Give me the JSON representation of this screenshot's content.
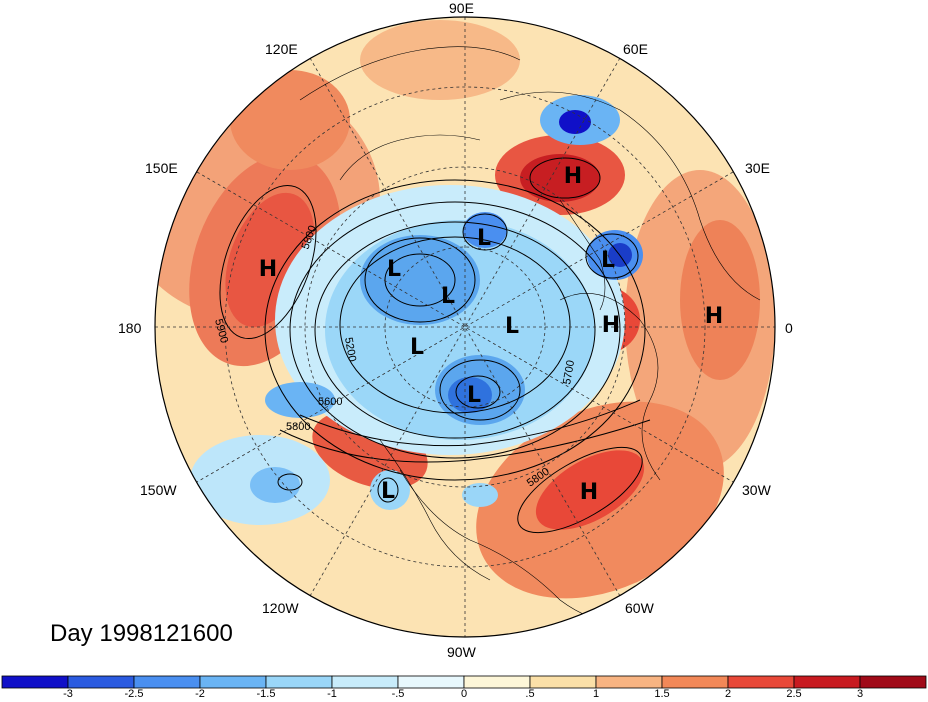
{
  "title": "Day 1998121600",
  "longitude_labels": {
    "lon_90e": "90E",
    "lon_60e": "60E",
    "lon_120e": "120E",
    "lon_150e": "150E",
    "lon_30e": "30E",
    "lon_180": "180",
    "lon_0": "0",
    "lon_150w": "150W",
    "lon_30w": "30W",
    "lon_120w": "120W",
    "lon_60w": "60W",
    "lon_90w": "90W"
  },
  "contour_labels": [
    "5800",
    "5900",
    "5200",
    "5600",
    "5800",
    "5700",
    "5800"
  ],
  "pressure_systems": [
    "H",
    "H",
    "L",
    "L",
    "L",
    "L",
    "L",
    "L",
    "L",
    "H",
    "H",
    "L",
    "H",
    "L"
  ],
  "colorbar": {
    "ticks": [
      "-3",
      "-2.5",
      "-2",
      "-1.5",
      "-1",
      "-.5",
      "0",
      ".5",
      "1",
      "1.5",
      "2",
      "2.5",
      "3"
    ],
    "colors": [
      "#1010c8",
      "#2b5be0",
      "#4a8ff0",
      "#6ab4f4",
      "#9ad6f8",
      "#c8ecfb",
      "#e8f8fd",
      "#fdf6d8",
      "#fbe0a8",
      "#f8b482",
      "#f28858",
      "#e84838",
      "#c81a20",
      "#a00a18"
    ]
  }
}
